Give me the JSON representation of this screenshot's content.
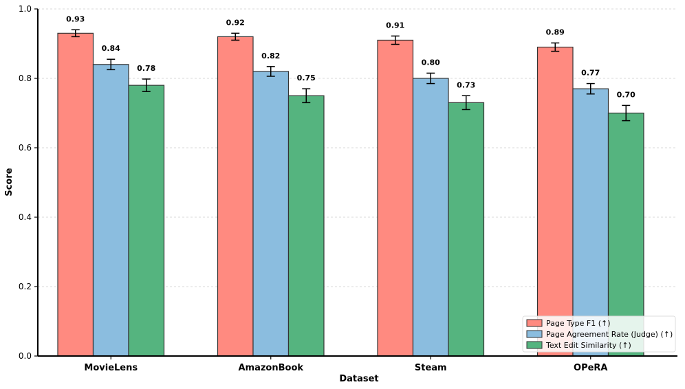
{
  "chart_data": {
    "type": "bar",
    "title": "",
    "xlabel": "Dataset",
    "ylabel": "Score",
    "ylim": [
      0,
      1.0
    ],
    "yticks": [
      "0.0",
      "0.2",
      "0.4",
      "0.6",
      "0.8",
      "1.0"
    ],
    "grid": "horizontal-dashed",
    "legend_position": "bottom-right",
    "categories": [
      "MovieLens",
      "AmazonBook",
      "Steam",
      "OPeRA"
    ],
    "series": [
      {
        "name": "Page Type F1 (↑)",
        "color": "#FF8A80",
        "values": [
          0.93,
          0.92,
          0.91,
          0.89
        ],
        "labels": [
          "0.93",
          "0.92",
          "0.91",
          "0.89"
        ],
        "errors": [
          0.01,
          0.01,
          0.012,
          0.012
        ]
      },
      {
        "name": "Page Agreement Rate (Judge) (↑)",
        "color": "#8BBDDF",
        "values": [
          0.84,
          0.82,
          0.8,
          0.77
        ],
        "labels": [
          "0.84",
          "0.82",
          "0.80",
          "0.77"
        ],
        "errors": [
          0.015,
          0.014,
          0.015,
          0.015
        ]
      },
      {
        "name": "Text Edit Similarity (↑)",
        "color": "#55B47F",
        "values": [
          0.78,
          0.75,
          0.73,
          0.7
        ],
        "labels": [
          "0.78",
          "0.75",
          "0.73",
          "0.70"
        ],
        "errors": [
          0.018,
          0.02,
          0.02,
          0.022
        ]
      }
    ]
  }
}
